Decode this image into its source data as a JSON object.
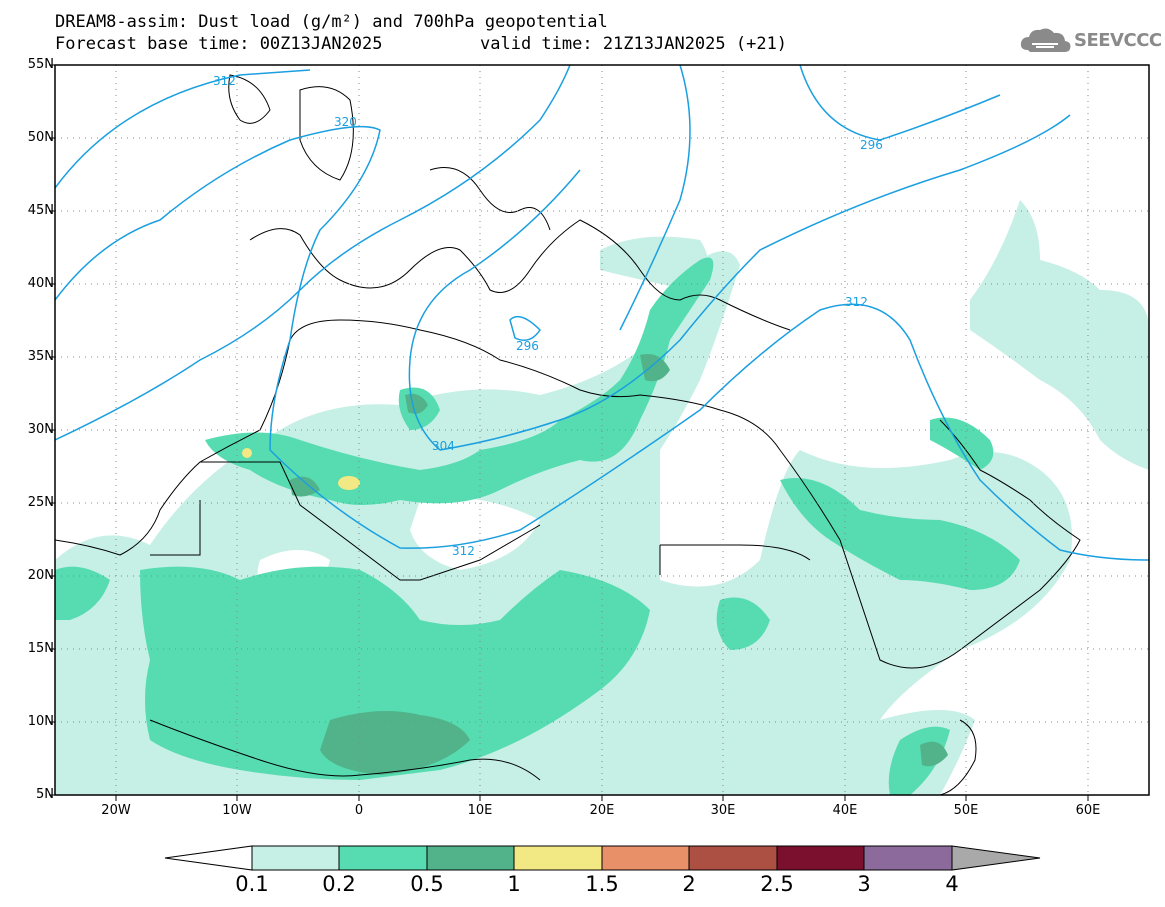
{
  "header": {
    "title_line1": "DREAM8-assim: Dust load (g/m²) and 700hPa geopotential",
    "title_line2": "Forecast base time: 00Z13JAN2025",
    "valid_time": "valid time: 21Z13JAN2025 (+21)"
  },
  "logo": {
    "text": "SEEVCCC",
    "icon": "cloud-icon"
  },
  "map": {
    "lat_labels": [
      "55N",
      "50N",
      "45N",
      "40N",
      "35N",
      "30N",
      "25N",
      "20N",
      "15N",
      "10N",
      "5N"
    ],
    "lon_labels": [
      "20W",
      "10W",
      "0",
      "10E",
      "20E",
      "30E",
      "40E",
      "50E",
      "60E"
    ],
    "contour_labels": [
      "312",
      "320",
      "296",
      "296",
      "312",
      "304",
      "312"
    ],
    "contour_color": "#1a9fe0"
  },
  "colorbar": {
    "labels": [
      "0.1",
      "0.2",
      "0.5",
      "1",
      "1.5",
      "2",
      "2.5",
      "3",
      "4"
    ],
    "colors": [
      "#ffffff",
      "#c6efe6",
      "#56dcb0",
      "#52b38b",
      "#f2e884",
      "#e89068",
      "#ab5042",
      "#7a0f2e",
      "#8c6b9c",
      "#a9a9a9"
    ]
  }
}
